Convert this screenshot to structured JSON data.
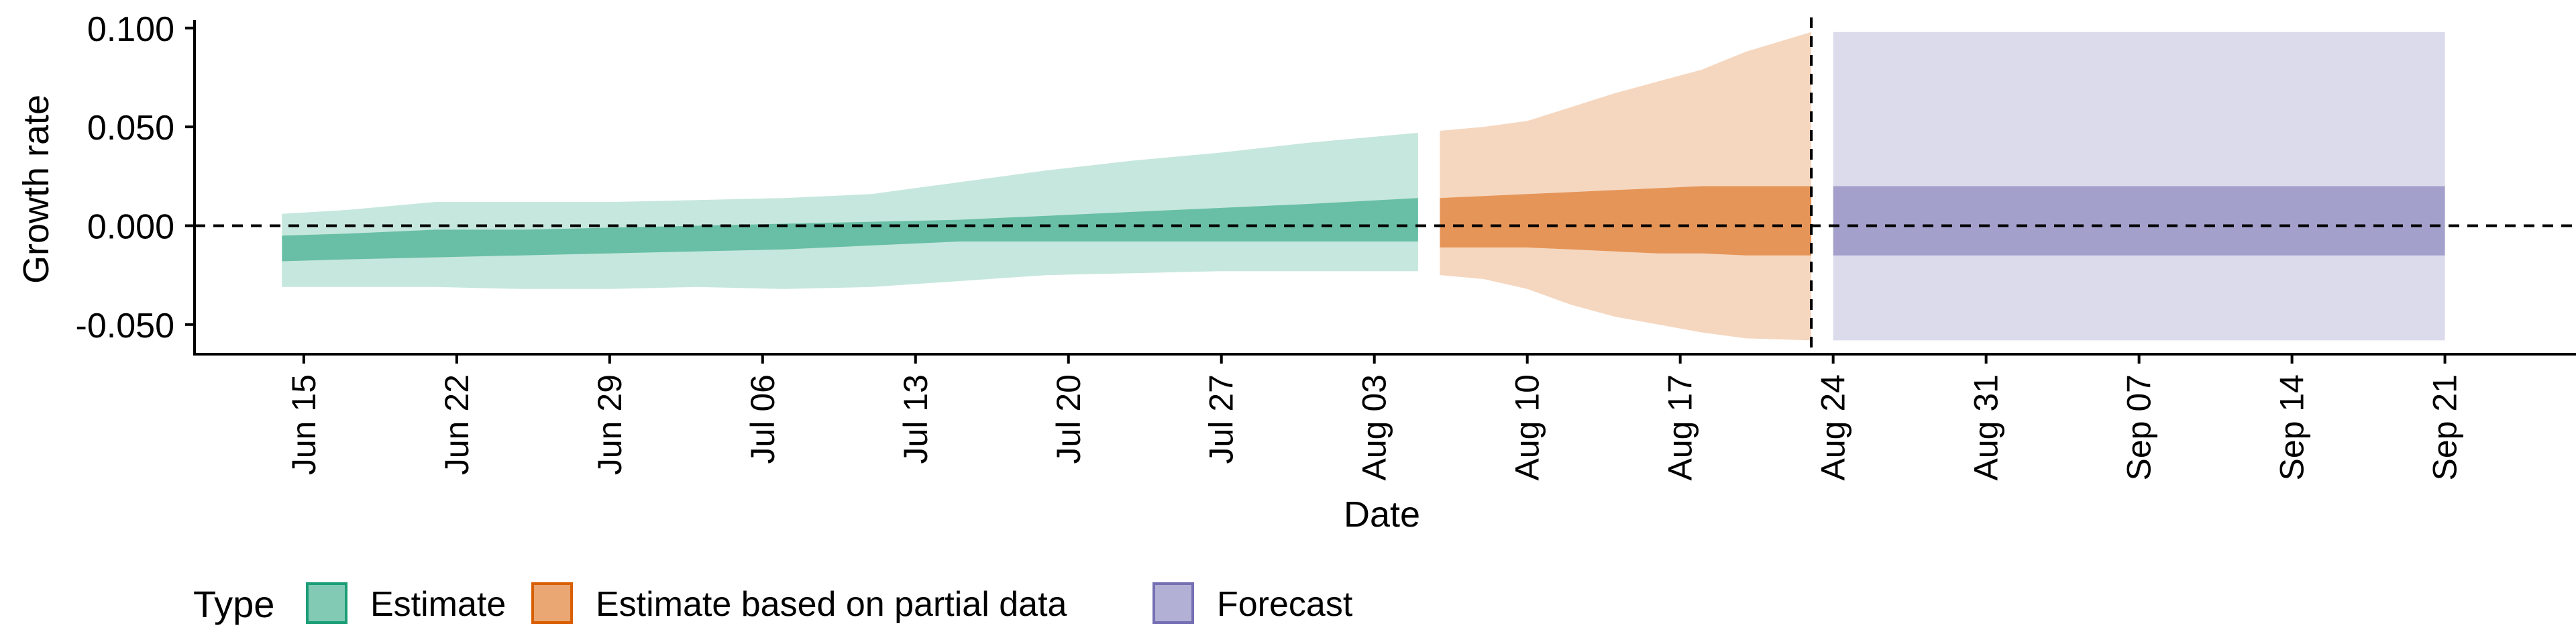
{
  "chart_data": {
    "type": "area",
    "xlabel": "Date",
    "ylabel": "Growth rate",
    "x_range": [
      "2020-06-10",
      "2020-09-27"
    ],
    "ylim": [
      -0.065,
      0.104
    ],
    "y_ticks": [
      0.1,
      0.05,
      0.0,
      -0.05
    ],
    "y_tick_labels": [
      "0.100",
      "0.050",
      "0.000",
      "-0.050"
    ],
    "x_ticks": [
      "2020-06-15",
      "2020-06-22",
      "2020-06-29",
      "2020-07-06",
      "2020-07-13",
      "2020-07-20",
      "2020-07-27",
      "2020-08-03",
      "2020-08-10",
      "2020-08-17",
      "2020-08-24",
      "2020-08-31",
      "2020-09-07",
      "2020-09-14",
      "2020-09-21"
    ],
    "x_tick_labels": [
      "Jun 15",
      "Jun 22",
      "Jun 29",
      "Jul 06",
      "Jul 13",
      "Jul 20",
      "Jul 27",
      "Aug 03",
      "Aug 10",
      "Aug 17",
      "Aug 24",
      "Aug 31",
      "Sep 07",
      "Sep 14",
      "Sep 21"
    ],
    "reference_lines": {
      "horizontal_y": 0,
      "vertical_date": "2020-08-23",
      "style": "dashed"
    },
    "grid": false,
    "legend": {
      "title": "Type",
      "position": "bottom-left"
    },
    "series": [
      {
        "name": "Estimate",
        "fill": "#1b9e77",
        "dates": [
          "2020-06-14",
          "2020-06-17",
          "2020-06-21",
          "2020-06-25",
          "2020-06-29",
          "2020-07-03",
          "2020-07-07",
          "2020-07-11",
          "2020-07-15",
          "2020-07-19",
          "2020-07-23",
          "2020-07-27",
          "2020-07-31",
          "2020-08-05"
        ],
        "outer_upper": [
          0.006,
          0.008,
          0.012,
          0.012,
          0.012,
          0.013,
          0.014,
          0.016,
          0.022,
          0.028,
          0.033,
          0.037,
          0.042,
          0.047
        ],
        "outer_lower": [
          -0.031,
          -0.031,
          -0.031,
          -0.032,
          -0.032,
          -0.031,
          -0.032,
          -0.031,
          -0.028,
          -0.025,
          -0.024,
          -0.023,
          -0.023,
          -0.023
        ],
        "inner_upper": [
          -0.005,
          -0.004,
          -0.002,
          -0.002,
          -0.001,
          0.0,
          0.001,
          0.002,
          0.003,
          0.005,
          0.007,
          0.009,
          0.011,
          0.014
        ],
        "inner_lower": [
          -0.018,
          -0.017,
          -0.016,
          -0.015,
          -0.014,
          -0.013,
          -0.012,
          -0.01,
          -0.008,
          -0.008,
          -0.008,
          -0.008,
          -0.008,
          -0.008
        ]
      },
      {
        "name": "Estimate based on partial data",
        "fill": "#d95f02",
        "dates": [
          "2020-08-06",
          "2020-08-08",
          "2020-08-10",
          "2020-08-12",
          "2020-08-14",
          "2020-08-16",
          "2020-08-18",
          "2020-08-20",
          "2020-08-23"
        ],
        "outer_upper": [
          0.048,
          0.05,
          0.053,
          0.06,
          0.067,
          0.073,
          0.079,
          0.088,
          0.098
        ],
        "outer_lower": [
          -0.025,
          -0.027,
          -0.032,
          -0.04,
          -0.046,
          -0.05,
          -0.054,
          -0.057,
          -0.058
        ],
        "inner_upper": [
          0.014,
          0.015,
          0.016,
          0.017,
          0.018,
          0.019,
          0.02,
          0.02,
          0.02
        ],
        "inner_lower": [
          -0.011,
          -0.011,
          -0.011,
          -0.012,
          -0.013,
          -0.014,
          -0.014,
          -0.015,
          -0.015
        ]
      },
      {
        "name": "Forecast",
        "fill": "#7570b3",
        "dates": [
          "2020-08-24",
          "2020-09-21"
        ],
        "outer_upper": [
          0.098,
          0.098
        ],
        "outer_lower": [
          -0.058,
          -0.058
        ],
        "inner_upper": [
          0.02,
          0.02
        ],
        "inner_lower": [
          -0.015,
          -0.015
        ]
      }
    ]
  }
}
